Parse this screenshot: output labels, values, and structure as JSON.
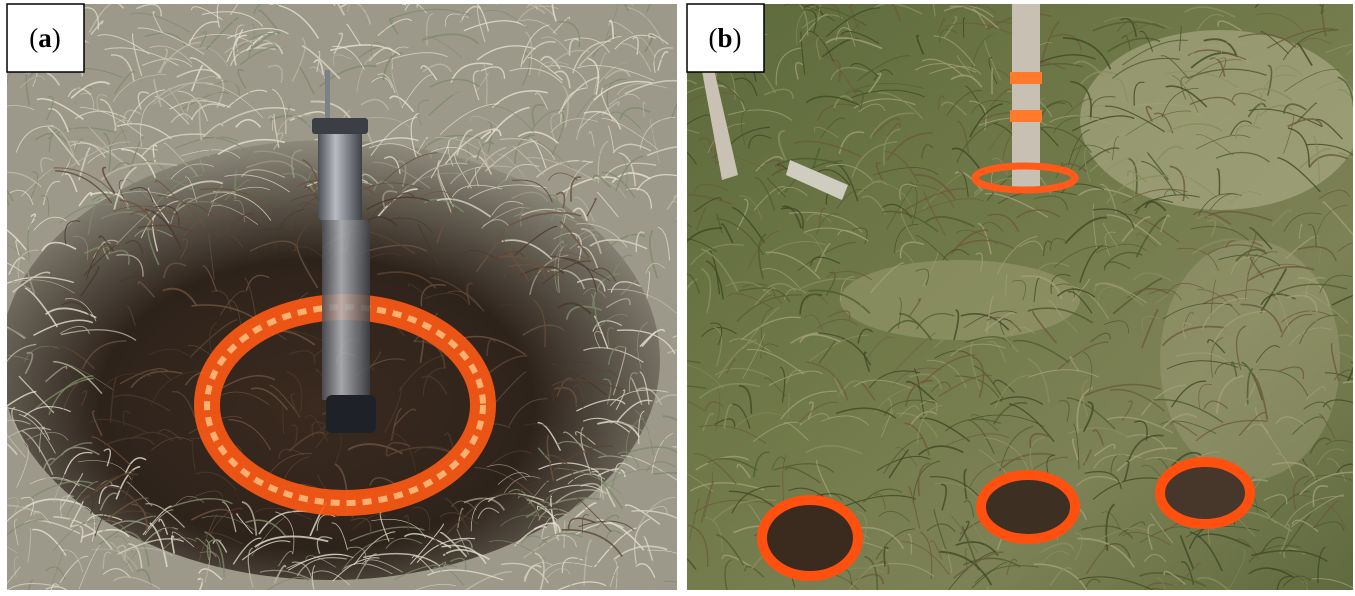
{
  "panels": [
    {
      "label_open": "(",
      "label": "a",
      "label_close": ")"
    },
    {
      "label_open": "(",
      "label": "b",
      "label_close": ")"
    }
  ]
}
